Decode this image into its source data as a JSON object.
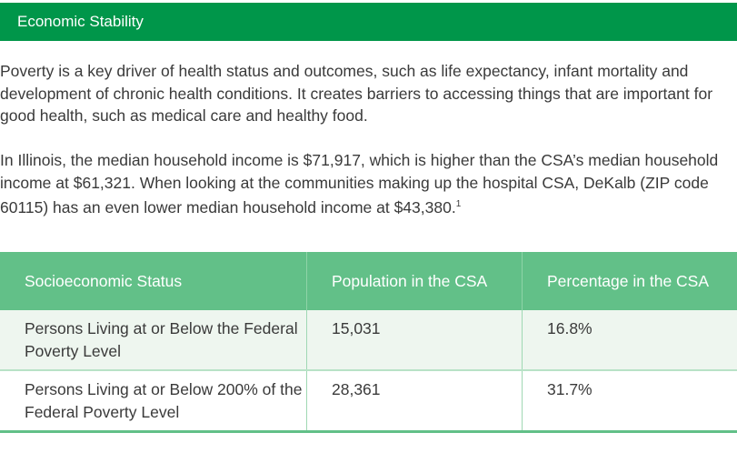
{
  "section": {
    "title": "Economic Stability"
  },
  "paragraphs": [
    "Poverty is a key driver of health status and outcomes, such as life expectancy, infant mortality and development of chronic health conditions. It creates barriers to accessing things that are important for good health, such as medical care and healthy food.",
    "In Illinois, the median household income is $71,917, which is higher than the CSA’s median household income at $61,321. When looking at the communities making up the hospital CSA, DeKalb (ZIP code 60115) has an even lower median household income at $43,380."
  ],
  "footnote": "1",
  "table": {
    "headers": [
      "Socioeconomic Status",
      "Population in the CSA",
      "Percentage in the CSA"
    ],
    "rows": [
      [
        "Persons Living at or Below the Federal Poverty Level",
        "15,031",
        "16.8%"
      ],
      [
        "Persons Living at or Below 200% of the Federal Poverty Level",
        "28,361",
        "31.7%"
      ]
    ]
  },
  "colors": {
    "header_bar": "#00964a",
    "table_header": "#62c088",
    "row_alt": "#eef6ef"
  }
}
